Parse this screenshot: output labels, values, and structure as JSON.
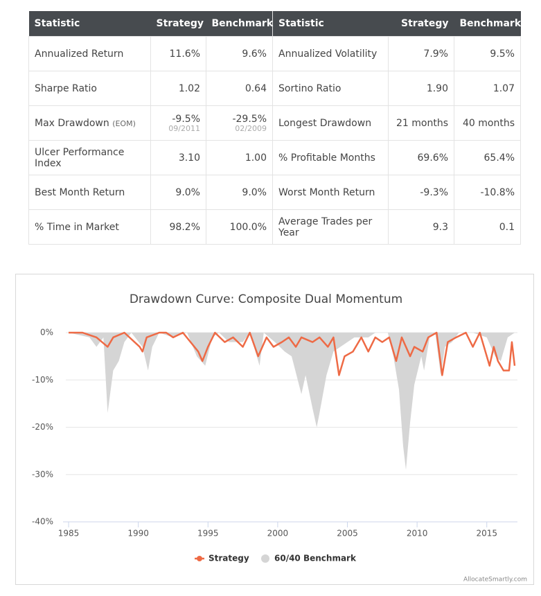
{
  "table": {
    "header": [
      "Statistic",
      "Strategy",
      "Benchmark",
      "Statistic",
      "Strategy",
      "Benchmark"
    ],
    "rows": [
      [
        "Annualized Return",
        "11.6%",
        "9.6%",
        "Annualized Volatility",
        "7.9%",
        "9.5%"
      ],
      [
        "Sharpe Ratio",
        "1.02",
        "0.64",
        "Sortino Ratio",
        "1.90",
        "1.07"
      ],
      [
        {
          "text": "Max Drawdown",
          "sub": "(EOM)"
        },
        {
          "text": "-9.5%",
          "sub": "09/2011"
        },
        {
          "text": "-29.5%",
          "sub": "02/2009"
        },
        "Longest Drawdown",
        "21 months",
        "40 months"
      ],
      [
        "Ulcer Performance Index",
        "3.10",
        "1.00",
        "% Profitable Months",
        "69.6%",
        "65.4%"
      ],
      [
        "Best Month Return",
        "9.0%",
        "9.0%",
        "Worst Month Return",
        "-9.3%",
        "-10.8%"
      ],
      [
        "% Time in Market",
        "98.2%",
        "100.0%",
        "Average Trades per Year",
        "9.3",
        "0.1"
      ]
    ]
  },
  "chart_data": {
    "type": "line",
    "title": "Drawdown Curve: Composite Dual Momentum",
    "credit": "AllocateSmartly.com",
    "xlim": [
      1984.8,
      2017.1
    ],
    "xticks": [
      1985,
      1990,
      1995,
      2000,
      2005,
      2010,
      2015
    ],
    "ylim": [
      -40,
      0
    ],
    "yticks": [
      {
        "value": 0,
        "label": "0%"
      },
      {
        "value": -10,
        "label": "-10%"
      },
      {
        "value": -20,
        "label": "-20%"
      },
      {
        "value": -30,
        "label": "-30%"
      },
      {
        "value": -40,
        "label": "-40%"
      }
    ],
    "grid": true,
    "series": [
      {
        "name": "60/40 Benchmark",
        "kind": "area",
        "color": "#d5d5d5",
        "x": [
          1985,
          1986.5,
          1987.0,
          1987.5,
          1987.8,
          1988.2,
          1988.6,
          1989.0,
          1989.5,
          1990.3,
          1990.7,
          1991.0,
          1991.5,
          1992.5,
          1993.5,
          1994.2,
          1994.8,
          1995.3,
          1995.8,
          1996.5,
          1997.5,
          1998.0,
          1998.7,
          1999.0,
          1999.8,
          2000.5,
          2001.0,
          2001.7,
          2002.0,
          2002.5,
          2002.8,
          2003.0,
          2003.5,
          2004.0,
          2004.5,
          2005.0,
          2005.5,
          2006.5,
          2007.0,
          2007.9,
          2008.3,
          2008.7,
          2009.0,
          2009.2,
          2009.5,
          2009.8,
          2010.3,
          2010.5,
          2010.9,
          2011.3,
          2011.7,
          2012.0,
          2012.5,
          2013.0,
          2014.0,
          2015.0,
          2015.6,
          2016.0,
          2016.5,
          2017.0
        ],
        "values": [
          0,
          -1,
          -3,
          -1,
          -17,
          -8,
          -6,
          -2,
          0,
          -3,
          -8,
          -3,
          0,
          -1,
          0,
          -5,
          -7,
          -1,
          0,
          -2,
          -2,
          0,
          -7,
          0,
          -2,
          -4,
          -5,
          -13,
          -9,
          -16,
          -20,
          -17,
          -9,
          -4,
          -3,
          -2,
          -1,
          -1,
          0,
          0,
          -5,
          -12,
          -24,
          -29,
          -19,
          -11,
          -5,
          -8,
          -1,
          0,
          -9,
          -3,
          -2,
          0,
          0,
          -1,
          -5,
          -6,
          -1,
          0
        ]
      },
      {
        "name": "Strategy",
        "kind": "line",
        "color": "#ee6a45",
        "x": [
          1985,
          1986,
          1987.0,
          1987.8,
          1988.2,
          1989,
          1990.1,
          1990.3,
          1990.6,
          1991.5,
          1992,
          1992.5,
          1993.2,
          1994.3,
          1994.6,
          1995.0,
          1995.5,
          1996.2,
          1996.8,
          1997.5,
          1998.0,
          1998.6,
          1999.2,
          1999.7,
          2000.3,
          2000.8,
          2001.3,
          2001.7,
          2002.5,
          2003.0,
          2003.6,
          2004.0,
          2004.4,
          2004.8,
          2005.4,
          2006.0,
          2006.5,
          2007.0,
          2007.5,
          2008.0,
          2008.5,
          2008.9,
          2009.5,
          2009.8,
          2010.4,
          2010.8,
          2011.4,
          2011.8,
          2012.2,
          2012.8,
          2013.5,
          2014.0,
          2014.5,
          2015.2,
          2015.5,
          2015.8,
          2016.2,
          2016.6,
          2016.8,
          2017.0
        ],
        "values": [
          0,
          0,
          -1,
          -3,
          -1,
          0,
          -3,
          -4,
          -1,
          0,
          0,
          -1,
          0,
          -4,
          -6,
          -3,
          0,
          -2,
          -1,
          -3,
          0,
          -5,
          -1,
          -3,
          -2,
          -1,
          -3,
          -1,
          -2,
          -1,
          -3,
          -1,
          -9,
          -5,
          -4,
          -1,
          -4,
          -1,
          -2,
          -1,
          -6,
          -1,
          -5,
          -3,
          -4,
          -1,
          0,
          -9,
          -2,
          -1,
          0,
          -3,
          0,
          -7,
          -3,
          -6,
          -8,
          -8,
          -2,
          -7
        ]
      }
    ]
  }
}
